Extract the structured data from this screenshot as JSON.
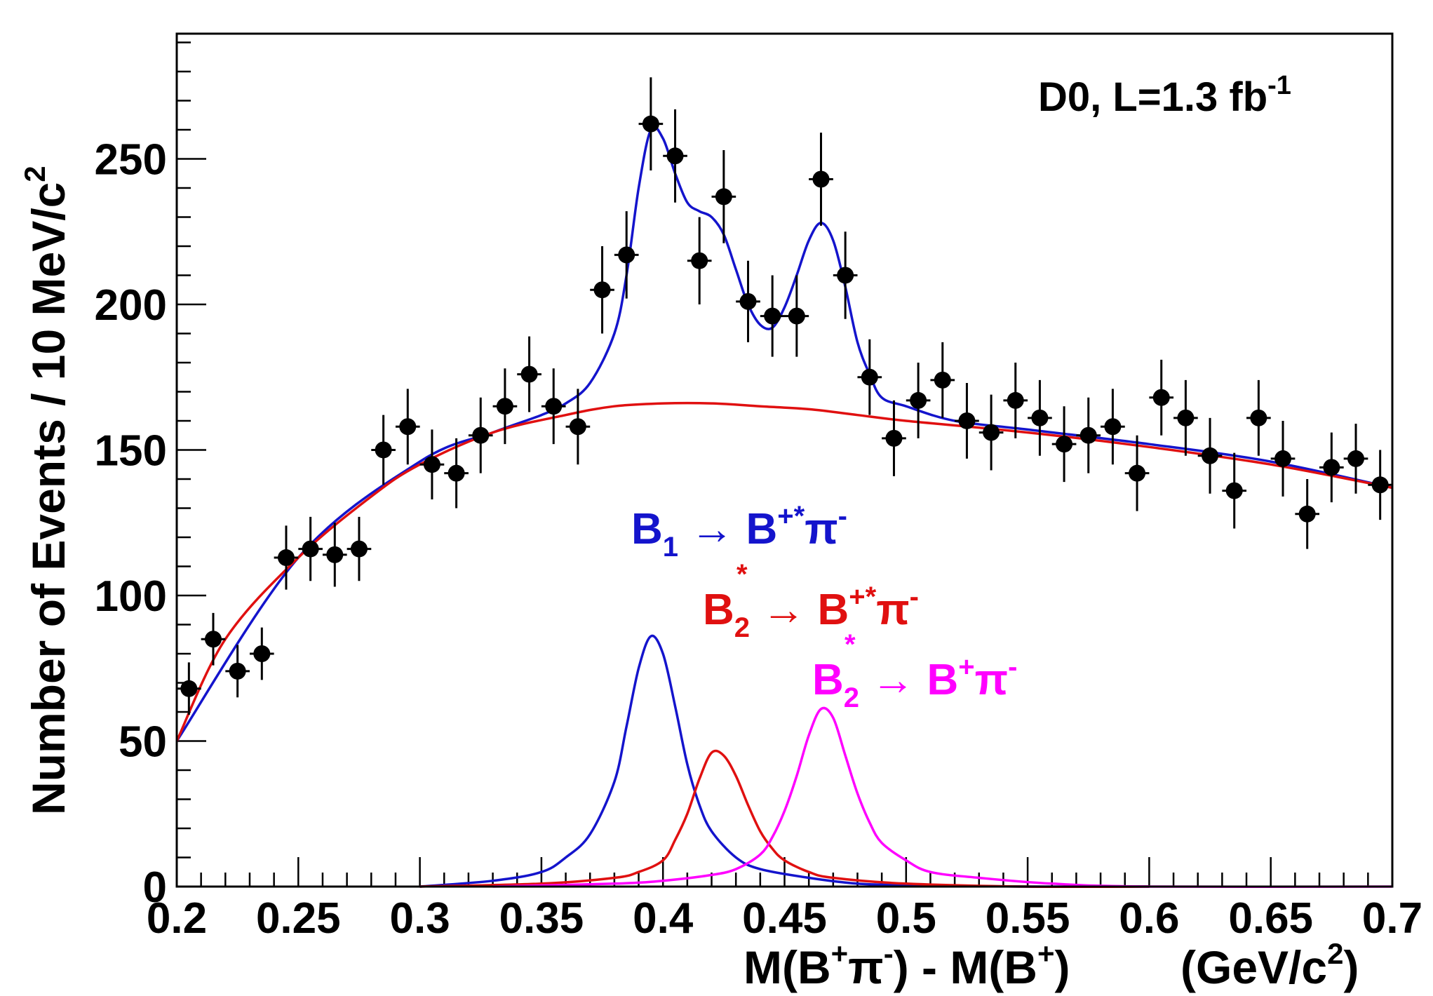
{
  "chart_data": {
    "type": "scatter",
    "xlabel": {
      "pre": "M(B",
      "sup1": "+",
      "mid1": "π",
      "sup2": "-",
      "mid2": ") - M(B",
      "sup3": "+",
      "post": ")"
    },
    "xunit": {
      "pre": "(GeV/c",
      "sup": "2",
      "post": ")"
    },
    "ylabel": {
      "pre": "Number of Events / 10 MeV/c",
      "sup": "2"
    },
    "xlim": [
      0.2,
      0.7
    ],
    "ylim": [
      0,
      293
    ],
    "x_ticks": [
      {
        "v": 0.2,
        "label": "0.2"
      },
      {
        "v": 0.25,
        "label": "0.25"
      },
      {
        "v": 0.3,
        "label": "0.3"
      },
      {
        "v": 0.35,
        "label": "0.35"
      },
      {
        "v": 0.4,
        "label": "0.4"
      },
      {
        "v": 0.45,
        "label": "0.45"
      },
      {
        "v": 0.5,
        "label": "0.5"
      },
      {
        "v": 0.55,
        "label": "0.55"
      },
      {
        "v": 0.6,
        "label": "0.6"
      },
      {
        "v": 0.65,
        "label": "0.65"
      },
      {
        "v": 0.7,
        "label": "0.7"
      }
    ],
    "y_ticks": [
      {
        "v": 0,
        "label": "0"
      },
      {
        "v": 50,
        "label": "50"
      },
      {
        "v": 100,
        "label": "100"
      },
      {
        "v": 150,
        "label": "150"
      },
      {
        "v": 200,
        "label": "200"
      },
      {
        "v": 250,
        "label": "250"
      }
    ],
    "annotation": {
      "pre": "D0, L=1.3 fb",
      "sup": "-1"
    },
    "bin_width": 0.01,
    "data_points": {
      "x": [
        0.205,
        0.215,
        0.225,
        0.235,
        0.245,
        0.255,
        0.265,
        0.275,
        0.285,
        0.295,
        0.305,
        0.315,
        0.325,
        0.335,
        0.345,
        0.355,
        0.365,
        0.375,
        0.385,
        0.395,
        0.405,
        0.415,
        0.425,
        0.435,
        0.445,
        0.455,
        0.465,
        0.475,
        0.485,
        0.495,
        0.505,
        0.515,
        0.525,
        0.535,
        0.545,
        0.555,
        0.565,
        0.575,
        0.585,
        0.595,
        0.605,
        0.615,
        0.625,
        0.635,
        0.645,
        0.655,
        0.665,
        0.675,
        0.685,
        0.695
      ],
      "y": [
        68,
        85,
        74,
        80,
        113,
        116,
        114,
        116,
        150,
        158,
        145,
        142,
        155,
        165,
        176,
        165,
        158,
        205,
        217,
        262,
        251,
        215,
        237,
        201,
        196,
        196,
        243,
        210,
        175,
        154,
        167,
        174,
        160,
        156,
        167,
        161,
        152,
        155,
        158,
        142,
        168,
        161,
        148,
        136,
        161,
        147,
        128,
        144,
        147,
        138
      ],
      "err": [
        9,
        9,
        9,
        9,
        11,
        11,
        11,
        11,
        12,
        13,
        12,
        12,
        13,
        13,
        13,
        13,
        13,
        15,
        15,
        16,
        16,
        15,
        16,
        14,
        14,
        14,
        16,
        15,
        13,
        13,
        13,
        13,
        13,
        13,
        13,
        13,
        13,
        13,
        13,
        13,
        13,
        13,
        13,
        13,
        13,
        13,
        12,
        12,
        12,
        12
      ],
      "color": "#000000"
    },
    "series": [
      {
        "name": "total_fit",
        "color": "#1414cc",
        "x": [
          0.2,
          0.25,
          0.3,
          0.33,
          0.35,
          0.36,
          0.37,
          0.38,
          0.385,
          0.39,
          0.395,
          0.4,
          0.405,
          0.41,
          0.415,
          0.42,
          0.425,
          0.43,
          0.435,
          0.44,
          0.445,
          0.45,
          0.455,
          0.46,
          0.465,
          0.47,
          0.475,
          0.48,
          0.485,
          0.49,
          0.5,
          0.52,
          0.55,
          0.6,
          0.65,
          0.7
        ],
        "y": [
          50,
          113,
          146,
          156,
          162,
          166,
          173,
          190,
          210,
          240,
          260,
          257,
          245,
          235,
          232,
          230,
          224,
          212,
          200,
          193,
          192,
          199,
          210,
          222,
          228,
          222,
          206,
          187,
          176,
          168,
          165,
          160,
          157,
          152,
          146,
          137
        ]
      },
      {
        "name": "background",
        "color": "#e01010",
        "x": [
          0.2,
          0.22,
          0.25,
          0.28,
          0.3,
          0.33,
          0.36,
          0.38,
          0.4,
          0.42,
          0.44,
          0.46,
          0.48,
          0.5,
          0.55,
          0.6,
          0.65,
          0.7
        ],
        "y": [
          50,
          85,
          113,
          134,
          145,
          156,
          162,
          165,
          166,
          166,
          165,
          164,
          162,
          160,
          156,
          151,
          145,
          137
        ]
      },
      {
        "name": "B1_peak",
        "color": "#1414cc",
        "x": [
          0.3,
          0.33,
          0.35,
          0.36,
          0.37,
          0.38,
          0.385,
          0.39,
          0.395,
          0.4,
          0.405,
          0.41,
          0.415,
          0.42,
          0.43,
          0.44,
          0.46,
          0.48,
          0.5,
          0.55,
          0.6
        ],
        "y": [
          0,
          2,
          5,
          10,
          18,
          36,
          55,
          75,
          86,
          80,
          62,
          42,
          28,
          19,
          10,
          6,
          3,
          1,
          0.5,
          0,
          0
        ]
      },
      {
        "name": "B2star_Bstar_peak",
        "color": "#e01010",
        "x": [
          0.3,
          0.35,
          0.38,
          0.39,
          0.4,
          0.405,
          0.41,
          0.415,
          0.42,
          0.425,
          0.43,
          0.435,
          0.44,
          0.445,
          0.45,
          0.46,
          0.47,
          0.5,
          0.55,
          0.6
        ],
        "y": [
          0,
          1,
          3,
          5,
          9,
          16,
          25,
          37,
          46,
          45,
          38,
          28,
          19,
          13,
          9,
          5,
          3,
          1,
          0,
          0
        ]
      },
      {
        "name": "B2star_B_peak",
        "color": "#ff00ff",
        "x": [
          0.33,
          0.38,
          0.4,
          0.42,
          0.43,
          0.44,
          0.445,
          0.45,
          0.455,
          0.46,
          0.465,
          0.47,
          0.475,
          0.48,
          0.485,
          0.49,
          0.5,
          0.51,
          0.53,
          0.56,
          0.6,
          0.7
        ],
        "y": [
          0,
          1,
          2,
          4,
          6,
          11,
          17,
          26,
          38,
          52,
          61,
          58,
          45,
          32,
          22,
          15,
          9,
          5,
          3,
          1,
          0,
          0
        ]
      }
    ],
    "labels": [
      {
        "color": "#1414cc",
        "main": "B",
        "sub": "1",
        "arrow": " → B",
        "sup": "+*",
        "tail": "π",
        "tailsup": "-"
      },
      {
        "color": "#e01010",
        "main": "B",
        "sub": "2",
        "star": "*",
        "arrow": " → B",
        "sup": "+*",
        "tail": "π",
        "tailsup": "-"
      },
      {
        "color": "#ff00ff",
        "main": "B",
        "sub": "2",
        "star": "*",
        "arrow": " → B",
        "sup": "+",
        "tail": "π",
        "tailsup": "-"
      }
    ]
  }
}
